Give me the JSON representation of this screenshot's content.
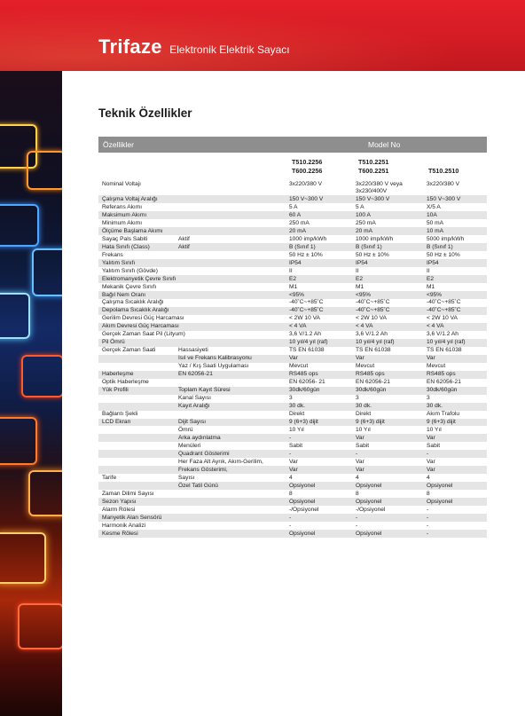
{
  "header": {
    "brand": "Trifaze",
    "subtitle": "Elektronik Elektrik Sayacı"
  },
  "section_title": "Teknik Özellikler",
  "table": {
    "head_left": "Özellikler",
    "head_right": "Model No",
    "models": [
      {
        "line1": "T510.2256",
        "line2": "T600.2256"
      },
      {
        "line1": "T510.2251",
        "line2": "T600.2251"
      },
      {
        "line1": "T510.2510",
        "line2": ""
      }
    ],
    "rows": [
      {
        "c1": "Nominal Voltajı",
        "c2": "",
        "c3": "3x220/380 V",
        "c4": "3x220/380 V veya",
        "c4b": "3x230/400V",
        "c5": "3x220/380 V",
        "tall": true
      },
      {
        "c1": "Çalışma Voltaj Aralığı",
        "c2": "",
        "c3": "150 V~300 V",
        "c4": "150 V~300 V",
        "c5": "150 V~300 V"
      },
      {
        "c1": "Referans Akımı",
        "c2": "",
        "c3": "5 A",
        "c4": "5 A",
        "c5": "X/5 A"
      },
      {
        "c1": "Maksimum Akımı",
        "c2": "",
        "c3": "60 A",
        "c4": "100 A",
        "c5": "10A"
      },
      {
        "c1": "Minimum Akımı",
        "c2": "",
        "c3": "250 mA",
        "c4": "250 mA",
        "c5": "50 mA"
      },
      {
        "c1": "Ölçüme Başlama Akımı",
        "c2": "",
        "c3": "20 mA",
        "c4": "20 mA",
        "c5": "10 mA"
      },
      {
        "c1": "Sayaç Pals Sabiti",
        "c2": "Aktif",
        "c3": "1000 imp/kWh",
        "c4": "1000 imp/kWh",
        "c5": "5000 imp/kWh"
      },
      {
        "c1": "Hata Sınıfı (Class)",
        "c2": "Aktif",
        "c3": "B (Sınıf 1)",
        "c4": "B (Sınıf 1)",
        "c5": "B (Sınıf 1)"
      },
      {
        "c1": "Frekans",
        "c2": "",
        "c3": "50 Hz ± 10%",
        "c4": "50 Hz ± 10%",
        "c5": "50 Hz ± 10%"
      },
      {
        "c1": "Yalıtım Sınıfı",
        "c2": "",
        "c3": "IP54",
        "c4": "IP54",
        "c5": "IP54"
      },
      {
        "c1": "Yalıtım Sınıfı (Gövde)",
        "c2": "",
        "c3": "II",
        "c4": "II",
        "c5": "II"
      },
      {
        "c1": "Elektromanyetik Çevre Sınıfı",
        "c2": "",
        "c3": "E2",
        "c4": "E2",
        "c5": "E2"
      },
      {
        "c1": "Mekanik Çevre Sınıfı",
        "c2": "",
        "c3": "M1",
        "c4": "M1",
        "c5": "M1"
      },
      {
        "c1": "Bağıl Nem Oranı",
        "c2": "",
        "c3": "<95%",
        "c4": "<95%",
        "c5": "<95%"
      },
      {
        "c1": "Çalışma Sıcaklık Aralığı",
        "c2": "",
        "c3": "-40˚C~+85˚C",
        "c4": "-40˚C~+85˚C",
        "c5": "-40˚C~+85˚C"
      },
      {
        "c1": "Depolama Sıcaklık Aralığı",
        "c2": "",
        "c3": "-40˚C~+85˚C",
        "c4": "-40˚C~+85˚C",
        "c5": "-40˚C~+85˚C"
      },
      {
        "c1": "Gerilim Devresi Güç Harcaması",
        "c2": "",
        "c3": "< 2W 10 VA",
        "c4": "< 2W 10 VA",
        "c5": "< 2W 10 VA"
      },
      {
        "c1": "Akım Devresi Güç Harcaması",
        "c2": "",
        "c3": "< 4 VA",
        "c4": "< 4 VA",
        "c5": "< 4 VA"
      },
      {
        "c1": "Gerçek Zaman Saat Pil (Lityum)",
        "c2": "",
        "c3": "3,6 V/1.2 Ah",
        "c4": "3,6 V/1.2 Ah",
        "c5": "3,6 V/1.2 Ah"
      },
      {
        "c1": "Pil Ömrü",
        "c2": "",
        "c3": "10 yıl/4 yıl (raf)",
        "c4": "10 yıl/4 yıl (raf)",
        "c5": "10 yıl/4 yıl (raf)"
      },
      {
        "c1": "Gerçek Zaman Saati",
        "c2": "Hassasiyeti",
        "c3": "TS EN 61038",
        "c4": "TS EN 61038",
        "c5": "TS EN 61038"
      },
      {
        "c1": "",
        "c2": "Isıl ve  Frekans Kalibrasyonu",
        "c3": "Var",
        "c4": "Var",
        "c5": "Var"
      },
      {
        "c1": "",
        "c2": "Yaz / Kış Saati Uygulaması",
        "c3": "Mevcut",
        "c4": "Mevcut",
        "c5": "Mevcut"
      },
      {
        "c1": "Haberleşme",
        "c2": "EN 62056-21",
        "c3": "RS485 ops",
        "c4": "RS485 ops",
        "c5": "RS485 ops"
      },
      {
        "c1": "Optik Haberleşme",
        "c2": "",
        "c3": "EN 62056- 21",
        "c4": "EN 62056-21",
        "c5": "EN 62056-21"
      },
      {
        "c1": "Yük Profili",
        "c2": "Toplam Kayıt Süresi",
        "c3": "30dk/60gün",
        "c4": "30dk/60gün",
        "c5": "30dk/60gün"
      },
      {
        "c1": "",
        "c2": "Kanal Sayısı",
        "c3": "3",
        "c4": "3",
        "c5": "3"
      },
      {
        "c1": "",
        "c2": "Kayıt Aralığı",
        "c3": "30 dk.",
        "c4": "30 dk.",
        "c5": "30 dk."
      },
      {
        "c1": "Bağlantı Şekli",
        "c2": "",
        "c3": "Direkt",
        "c4": "Direkt",
        "c5": "Akım Trafolu"
      },
      {
        "c1": "LCD Ekran",
        "c2": "Dijit Sayısı",
        "c3": "9 (6+3) dijit",
        "c4": "9 (6+3) dijit",
        "c5": "9 (6+3) dijit"
      },
      {
        "c1": "",
        "c2": "Ömrü",
        "c3": "10 Yıl",
        "c4": "10 Yıl",
        "c5": "10 Yıl"
      },
      {
        "c1": "",
        "c2": "Arka aydınlatma",
        "c3": "-",
        "c4": "Var",
        "c5": "Var"
      },
      {
        "c1": "",
        "c2": "Menüleri",
        "c3": "Sabit",
        "c4": "Sabit",
        "c5": "Sabit"
      },
      {
        "c1": "",
        "c2": "Quadrant Gösterimi",
        "c3": "-",
        "c4": "-",
        "c5": "-"
      },
      {
        "c1": "",
        "c2": "Her Faza Alt Ayrık, Akım-Gerilim,",
        "c3": "Var",
        "c4": "Var",
        "c5": "Var"
      },
      {
        "c1": "",
        "c2": "Frekans Gösterimi,",
        "c3": "Var",
        "c4": "Var",
        "c5": "Var"
      },
      {
        "c1": "Tarife",
        "c2": "Sayısı",
        "c3": "4",
        "c4": "4",
        "c5": "4"
      },
      {
        "c1": "",
        "c2": "Özel Tatil Günü",
        "c3": "Opsiyonel",
        "c4": "Opsiyonel",
        "c5": "Opsiyonel"
      },
      {
        "c1": "Zaman Dilimi Sayısı",
        "c2": "",
        "c3": "8",
        "c4": "8",
        "c5": "8"
      },
      {
        "c1": "Sezon Yapısı",
        "c2": "",
        "c3": "Opsiyonel",
        "c4": "Opsiyonel",
        "c5": "Opsiyonel"
      },
      {
        "c1": "Alarm Rölesi",
        "c2": "",
        "c3": "-/Opsiyonel",
        "c4": "-/Opsiyonel",
        "c5": "-"
      },
      {
        "c1": "Manyetik Alan Sensörü",
        "c2": "",
        "c3": "-",
        "c4": "-",
        "c5": "-"
      },
      {
        "c1": "Harmonik Analizi",
        "c2": "",
        "c3": "-",
        "c4": "-",
        "c5": "-"
      },
      {
        "c1": "Kesme Rölesi",
        "c2": "",
        "c3": "Opsiyonel",
        "c4": "Opsiyonel",
        "c5": "-"
      }
    ]
  }
}
